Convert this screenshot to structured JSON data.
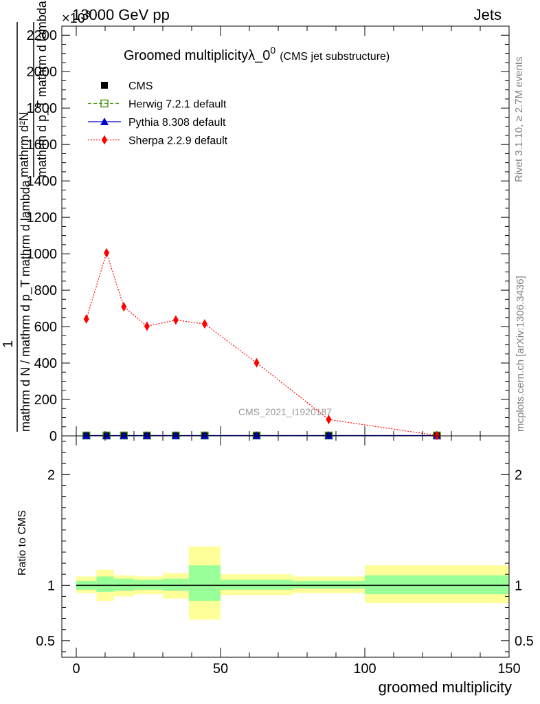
{
  "header": {
    "left": "13000 GeV pp",
    "right": "Jets",
    "multiplier": "×10",
    "multiplier_exp": "3"
  },
  "side_text": {
    "rivet": "Rivet 3.1.10, ≥ 2.7M events",
    "mcplots": "mcplots.cern.ch [arXiv:1306.3436]"
  },
  "chart_data": [
    {
      "type": "line",
      "title": "Groomed multiplicityλ_0",
      "title_sup": "0",
      "subtitle": "(CMS jet substructure)",
      "watermark": "CMS_2021_I1920187",
      "ylabel": "1 / (mathrm d N / mathrm d p_T mathrm d lambda) · mathrm d²N / mathrm d p_T mathrm d lambda",
      "ylabel_parts": {
        "frac1_num": "1",
        "frac1_den": "mathrm d N / mathrm d p_T mathrm d lambda",
        "frac2_num": "mathrm d²N",
        "frac2_den": "mathrm d p_T mathrm d lambda"
      },
      "xlim": [
        -5,
        150
      ],
      "ylim": [
        0,
        2250
      ],
      "yticks": [
        0,
        200,
        400,
        600,
        800,
        1000,
        1200,
        1400,
        1600,
        1800,
        2000,
        2200
      ],
      "ytick_labels": [
        "0",
        "200",
        "400",
        "600",
        "800",
        "1000",
        "1200",
        "1400",
        "1600",
        "1800",
        "2000",
        "2200"
      ],
      "legend_position": "top-left",
      "series": [
        {
          "name": "CMS",
          "color": "#000000",
          "marker": "square-filled",
          "x": [
            3.5,
            10.5,
            16.5,
            24.5,
            34.5,
            44.5,
            62.5,
            87.5,
            125
          ],
          "y": [
            2,
            2,
            2,
            2,
            2,
            2,
            2,
            2,
            2
          ]
        },
        {
          "name": "Herwig 7.2.1 default",
          "color": "#4c9a19",
          "marker": "square-open",
          "line": "dashed",
          "x": [
            3.5,
            10.5,
            16.5,
            24.5,
            34.5,
            44.5,
            62.5,
            87.5,
            125
          ],
          "y": [
            2,
            2,
            2,
            2,
            2,
            2,
            2,
            2,
            2
          ]
        },
        {
          "name": "Pythia 8.308 default",
          "color": "#0000cc",
          "marker": "triangle",
          "line": "solid",
          "x": [
            3.5,
            10.5,
            16.5,
            24.5,
            34.5,
            44.5,
            62.5,
            87.5,
            125
          ],
          "y": [
            2,
            2,
            2,
            2,
            2,
            2,
            2,
            2,
            2
          ]
        },
        {
          "name": "Sherpa 2.2.9 default",
          "color": "#ff0000",
          "marker": "diamond",
          "line": "dotted",
          "x": [
            3.5,
            10.5,
            16.5,
            24.5,
            34.5,
            44.5,
            62.5,
            87.5,
            125
          ],
          "y": [
            642,
            1005,
            709,
            602,
            636,
            615,
            401,
            90,
            2
          ]
        }
      ]
    },
    {
      "type": "area",
      "ylabel": "Ratio to CMS",
      "xlabel": "groomed multiplicity",
      "xlim": [
        -5,
        150
      ],
      "ylim": [
        0.35,
        2.35
      ],
      "xticks": [
        0,
        50,
        100,
        150
      ],
      "xtick_labels": [
        "0",
        "50",
        "100",
        "150"
      ],
      "yticks": [
        0.5,
        1,
        2
      ],
      "ytick_labels": [
        "0.5",
        "1",
        "2"
      ],
      "bins": [
        {
          "lo": 0,
          "hi": 7,
          "inner": [
            0.96,
            1.04
          ],
          "outer": [
            0.93,
            1.08
          ]
        },
        {
          "lo": 7,
          "hi": 13,
          "inner": [
            0.94,
            1.08
          ],
          "outer": [
            0.86,
            1.14
          ]
        },
        {
          "lo": 13,
          "hi": 20,
          "inner": [
            0.95,
            1.06
          ],
          "outer": [
            0.9,
            1.09
          ]
        },
        {
          "lo": 20,
          "hi": 30,
          "inner": [
            0.96,
            1.05
          ],
          "outer": [
            0.92,
            1.08
          ]
        },
        {
          "lo": 30,
          "hi": 39,
          "inner": [
            0.95,
            1.06
          ],
          "outer": [
            0.88,
            1.11
          ]
        },
        {
          "lo": 39,
          "hi": 50,
          "inner": [
            0.86,
            1.18
          ],
          "outer": [
            0.69,
            1.35
          ]
        },
        {
          "lo": 50,
          "hi": 75,
          "inner": [
            0.96,
            1.05
          ],
          "outer": [
            0.91,
            1.1
          ]
        },
        {
          "lo": 75,
          "hi": 100,
          "inner": [
            0.97,
            1.04
          ],
          "outer": [
            0.93,
            1.08
          ]
        },
        {
          "lo": 100,
          "hi": 150,
          "inner": [
            0.92,
            1.09
          ],
          "outer": [
            0.84,
            1.18
          ]
        }
      ],
      "colors": {
        "inner": "#99ff99",
        "outer": "#ffff99",
        "ref": "#000000"
      }
    }
  ]
}
